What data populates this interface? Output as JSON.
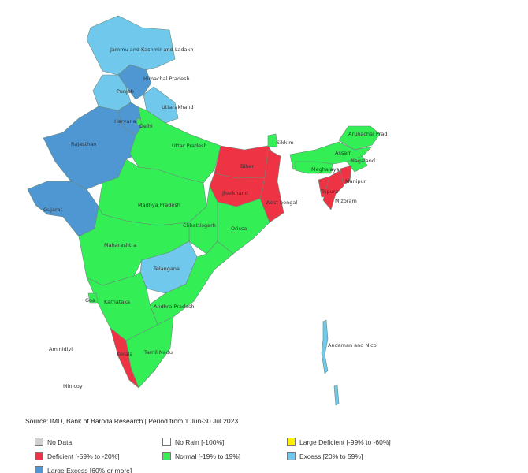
{
  "colors": {
    "no_data": "#d0d0d0",
    "no_rain": "#ffffff",
    "large_deficient": "#ffee00",
    "deficient": "#ee3344",
    "normal": "#33ee55",
    "excess": "#70c8ec",
    "large_excess": "#4f97d3"
  },
  "regions": [
    {
      "name": "Jammu and Kashmir and Ladakh",
      "category": "excess"
    },
    {
      "name": "Himachal Pradesh",
      "category": "large_excess"
    },
    {
      "name": "Punjab",
      "category": "excess"
    },
    {
      "name": "Uttarakhand",
      "category": "excess"
    },
    {
      "name": "Haryana",
      "category": "large_excess"
    },
    {
      "name": "Delhi",
      "category": "normal"
    },
    {
      "name": "Rajasthan",
      "category": "large_excess"
    },
    {
      "name": "Gujarat",
      "category": "large_excess"
    },
    {
      "name": "Uttar Pradesh",
      "category": "normal"
    },
    {
      "name": "Madhya Pradesh",
      "category": "normal"
    },
    {
      "name": "Bihar",
      "category": "deficient"
    },
    {
      "name": "Jharkhand",
      "category": "deficient"
    },
    {
      "name": "West bengal",
      "category": "deficient"
    },
    {
      "name": "Sikkim",
      "category": "normal"
    },
    {
      "name": "Orissa",
      "category": "normal"
    },
    {
      "name": "Chhattisgarh",
      "category": "normal"
    },
    {
      "name": "Maharashtra",
      "category": "normal"
    },
    {
      "name": "Telangana",
      "category": "excess"
    },
    {
      "name": "Andhra Pradesh",
      "category": "normal"
    },
    {
      "name": "Karnataka",
      "category": "normal"
    },
    {
      "name": "Goa",
      "category": "normal"
    },
    {
      "name": "Kerala",
      "category": "deficient"
    },
    {
      "name": "Tamil Nadu",
      "category": "normal"
    },
    {
      "name": "Arunachal Prad",
      "category": "normal"
    },
    {
      "name": "Assam",
      "category": "normal"
    },
    {
      "name": "Nagaland",
      "category": "normal"
    },
    {
      "name": "Meghalaya",
      "category": "normal"
    },
    {
      "name": "Manipur",
      "category": "deficient"
    },
    {
      "name": "Tripura",
      "category": "deficient"
    },
    {
      "name": "Mizoram",
      "category": "deficient"
    },
    {
      "name": "Andaman and Nicol",
      "category": "excess"
    },
    {
      "name": "Aminidivi",
      "category": "no_data"
    },
    {
      "name": "Minicoy",
      "category": "no_data"
    }
  ],
  "source": "Source: IMD, Bank of Baroda Research | Period from 1 Jun-30 Jul 2023.",
  "legend": [
    {
      "key": "no_data",
      "label": "No Data"
    },
    {
      "key": "no_rain",
      "label": "No Rain [-100%]"
    },
    {
      "key": "large_deficient",
      "label": "Large Deficient [-99% to -60%]"
    },
    {
      "key": "deficient",
      "label": "Deficient [-59% to -20%]"
    },
    {
      "key": "normal",
      "label": "Normal [-19% to 19%]"
    },
    {
      "key": "excess",
      "label": "Excess [20% to 59%]"
    },
    {
      "key": "large_excess",
      "label": "Large Excess [60% or more]"
    }
  ]
}
